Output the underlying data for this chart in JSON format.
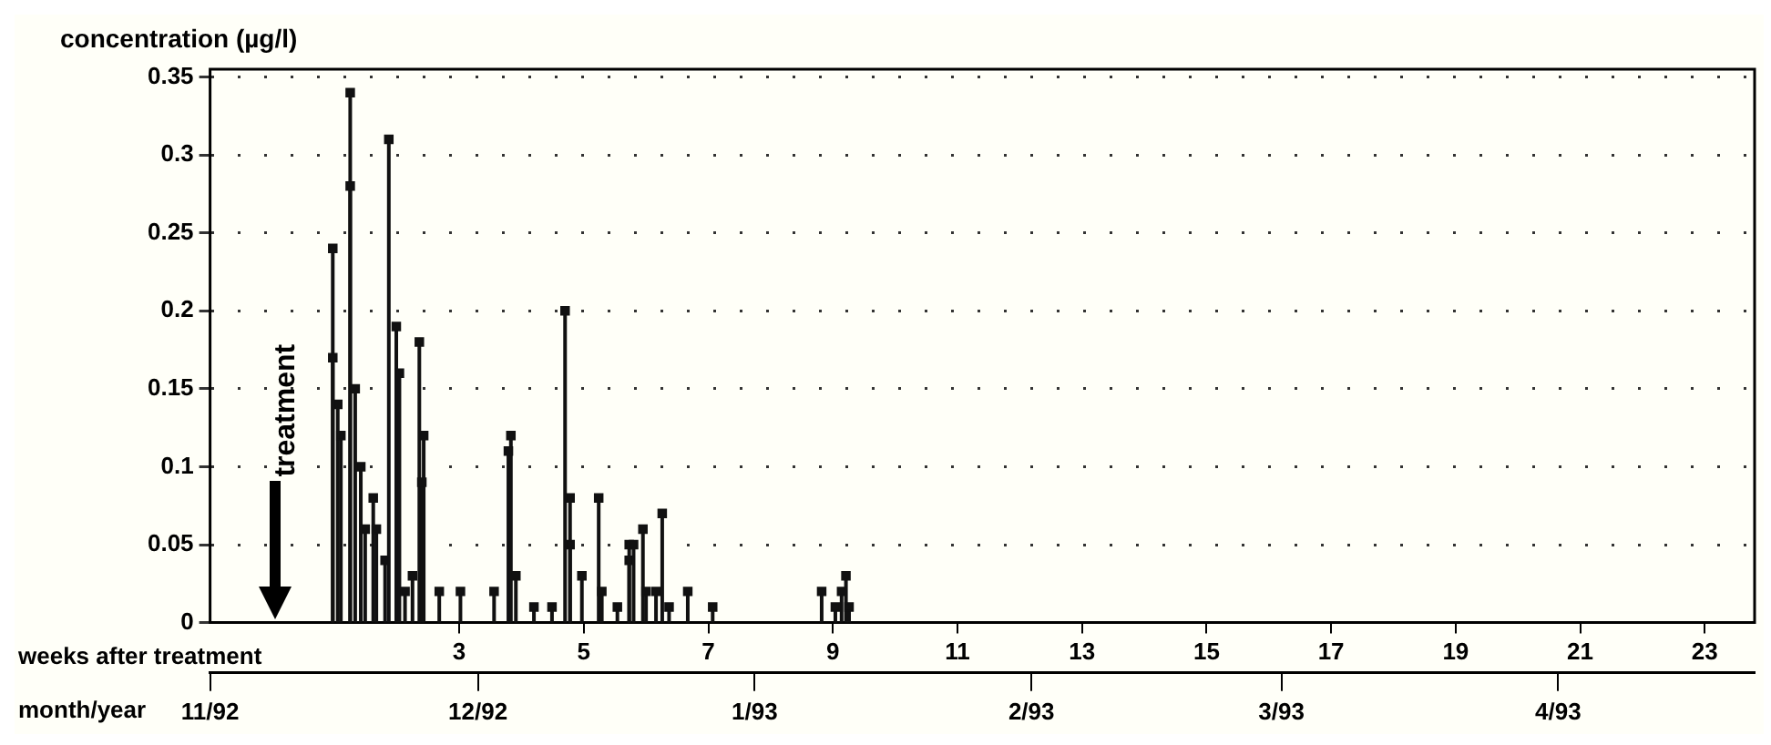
{
  "chart_data": {
    "type": "lollipop",
    "ylabel": "concentration (µg/l)",
    "xlabel": "weeks after treatment",
    "x2label": "month/year",
    "x": [
      0.97,
      0.97,
      1.05,
      1.1,
      1.25,
      1.25,
      1.33,
      1.42,
      1.49,
      1.62,
      1.67,
      1.81,
      1.87,
      1.99,
      2.04,
      2.13,
      2.25,
      2.36,
      2.43,
      2.4,
      2.68,
      3.02,
      3.56,
      3.79,
      3.83,
      3.91,
      4.2,
      4.49,
      4.7,
      4.78,
      4.78,
      4.97,
      5.24,
      5.29,
      5.54,
      5.73,
      5.73,
      5.8,
      5.95,
      6.0,
      6.16,
      6.26,
      6.37,
      6.67,
      7.07,
      8.82,
      9.04,
      9.14,
      9.21,
      9.26
    ],
    "values": [
      0.24,
      0.17,
      0.14,
      0.12,
      0.34,
      0.28,
      0.15,
      0.1,
      0.06,
      0.08,
      0.06,
      0.04,
      0.31,
      0.19,
      0.16,
      0.02,
      0.03,
      0.18,
      0.12,
      0.09,
      0.02,
      0.02,
      0.02,
      0.11,
      0.12,
      0.03,
      0.01,
      0.01,
      0.2,
      0.08,
      0.05,
      0.03,
      0.08,
      0.02,
      0.01,
      0.05,
      0.04,
      0.05,
      0.06,
      0.02,
      0.02,
      0.07,
      0.01,
      0.02,
      0.01,
      0.02,
      0.01,
      0.02,
      0.03,
      0.01
    ],
    "color": "#111111",
    "marker": "square",
    "grid": "y",
    "xlim": [
      -1,
      23.8
    ],
    "xticks": [
      3,
      5,
      7,
      9,
      11,
      13,
      15,
      17,
      19,
      21,
      23
    ],
    "x2lim": [
      "1992-11-01",
      "1993-04-23"
    ],
    "x2ticks": [
      {
        "value": "1992-11",
        "label": "11/92"
      },
      {
        "value": "1992-12",
        "label": "12/92"
      },
      {
        "value": "1993-01",
        "label": "1/93"
      },
      {
        "value": "1993-02",
        "label": "2/93"
      },
      {
        "value": "1993-03",
        "label": "3/93"
      },
      {
        "value": "1993-04",
        "label": "4/93"
      }
    ],
    "ylim": [
      0,
      0.355
    ],
    "yticks": [
      0,
      0.05,
      0.1,
      0.15,
      0.2,
      0.25,
      0.3,
      0.35
    ],
    "annotations": [
      "treatment"
    ]
  }
}
